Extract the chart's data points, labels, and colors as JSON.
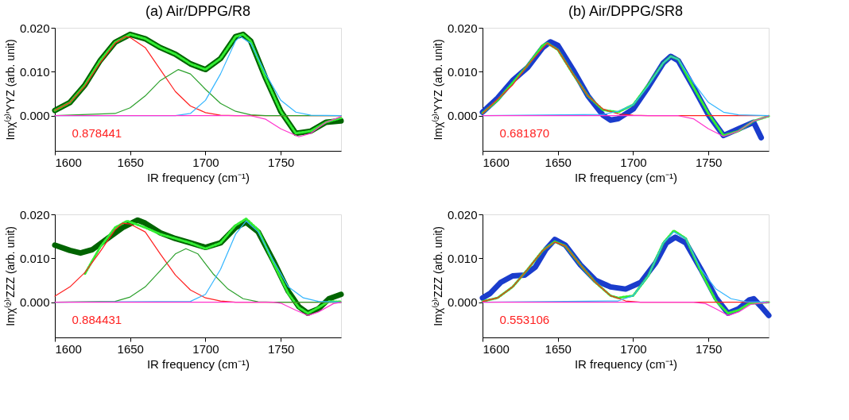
{
  "chart_data": [
    {
      "type": "line",
      "title": "(a) Air/DPPG/R8",
      "xlabel": "IR frequency (cm⁻¹)",
      "ylabel": "Imχ⁽²⁾′YYZ (arb. unit)",
      "xlim": [
        1600,
        1790
      ],
      "xticks": [
        1600,
        1650,
        1700,
        1750
      ],
      "ylim": [
        -0.008,
        0.02
      ],
      "yticks": [
        {
          "value": 0,
          "label": "0.000"
        },
        {
          "value": 0.01,
          "label": "0.010"
        },
        {
          "value": 0.02,
          "label": "0.020"
        }
      ],
      "grid": false,
      "marker": "none",
      "annotations": [
        "0.878441"
      ],
      "series": [
        {
          "color": "#006400",
          "line_style": "solid",
          "x": [
            1600,
            1610,
            1620,
            1630,
            1640,
            1650,
            1660,
            1670,
            1680,
            1690,
            1700,
            1710,
            1720,
            1725,
            1730,
            1740,
            1750,
            1760,
            1770,
            1780,
            1790
          ],
          "values": [
            0.0012,
            0.003,
            0.007,
            0.0125,
            0.0167,
            0.0185,
            0.0175,
            0.0155,
            0.014,
            0.0118,
            0.0105,
            0.013,
            0.018,
            0.0185,
            0.017,
            0.0085,
            0.001,
            -0.004,
            -0.0035,
            -0.0015,
            -0.0012
          ]
        },
        {
          "color": "#33ee33",
          "line_style": "dotted",
          "x": [
            1600,
            1610,
            1620,
            1630,
            1640,
            1650,
            1660,
            1670,
            1680,
            1690,
            1700,
            1710,
            1720,
            1725,
            1730,
            1740,
            1750,
            1760,
            1770,
            1780,
            1790
          ],
          "values": [
            0.0012,
            0.003,
            0.007,
            0.0125,
            0.0167,
            0.0185,
            0.0175,
            0.0155,
            0.014,
            0.0118,
            0.0105,
            0.013,
            0.018,
            0.0185,
            0.017,
            0.0085,
            0.001,
            -0.004,
            -0.0035,
            -0.0015,
            -0.0005
          ]
        },
        {
          "color": "#ff2020",
          "line_style": "solid",
          "x": [
            1600,
            1610,
            1620,
            1630,
            1640,
            1647,
            1650,
            1660,
            1670,
            1680,
            1690,
            1700,
            1710,
            1720,
            1790
          ],
          "values": [
            0.0012,
            0.003,
            0.0068,
            0.012,
            0.0165,
            0.018,
            0.0178,
            0.0155,
            0.0105,
            0.0055,
            0.0022,
            0.0007,
            0.0001,
            0,
            0
          ]
        },
        {
          "color": "#2ca02c",
          "line_style": "solid",
          "x": [
            1600,
            1640,
            1650,
            1660,
            1670,
            1682,
            1690,
            1700,
            1710,
            1720,
            1730,
            1740,
            1790
          ],
          "values": [
            0,
            0.0005,
            0.0018,
            0.0045,
            0.008,
            0.0105,
            0.0095,
            0.006,
            0.0028,
            0.001,
            0.0002,
            0,
            0
          ]
        },
        {
          "color": "#33b5ff",
          "line_style": "solid",
          "x": [
            1600,
            1680,
            1690,
            1700,
            1710,
            1720,
            1723,
            1730,
            1740,
            1750,
            1760,
            1770,
            1790
          ],
          "values": [
            0,
            0,
            0.0005,
            0.0035,
            0.0095,
            0.017,
            0.018,
            0.0165,
            0.0095,
            0.0035,
            0.0008,
            0.0001,
            0
          ]
        },
        {
          "color": "#ff33cc",
          "line_style": "solid",
          "x": [
            1600,
            1730,
            1740,
            1750,
            1762,
            1770,
            1780,
            1790
          ],
          "values": [
            0,
            0,
            -0.0008,
            -0.003,
            -0.0048,
            -0.004,
            -0.0015,
            -0.0002
          ]
        }
      ]
    },
    {
      "type": "line",
      "title": "(b) Air/DPPG/SR8",
      "xlabel": "IR frequency (cm⁻¹)",
      "ylabel": "Imχ⁽²⁾′YYZ (arb. unit)",
      "xlim": [
        1600,
        1790
      ],
      "xticks": [
        1600,
        1650,
        1700,
        1750
      ],
      "ylim": [
        -0.008,
        0.02
      ],
      "yticks": [
        {
          "value": 0,
          "label": "0.000"
        },
        {
          "value": 0.01,
          "label": "0.010"
        },
        {
          "value": 0.02,
          "label": "0.020"
        }
      ],
      "grid": false,
      "marker": "none",
      "annotations": [
        "0.681870"
      ],
      "series": [
        {
          "color": "#1a3ccc",
          "line_style": "solid",
          "x": [
            1600,
            1610,
            1620,
            1630,
            1640,
            1645,
            1650,
            1660,
            1670,
            1680,
            1685,
            1690,
            1700,
            1710,
            1720,
            1725,
            1730,
            1740,
            1750,
            1760,
            1770,
            1780,
            1785
          ],
          "values": [
            0.0008,
            0.004,
            0.008,
            0.011,
            0.0155,
            0.0168,
            0.016,
            0.0105,
            0.0045,
            0.0001,
            -0.001,
            -0.0007,
            0.0015,
            0.0065,
            0.012,
            0.0135,
            0.0125,
            0.0065,
            0.0002,
            -0.0045,
            -0.003,
            -0.0015,
            -0.005
          ]
        },
        {
          "color": "#33ee33",
          "line_style": "dotted",
          "x": [
            1600,
            1610,
            1620,
            1630,
            1640,
            1643,
            1650,
            1660,
            1670,
            1680,
            1690,
            1700,
            1710,
            1720,
            1725,
            1730,
            1740,
            1750,
            1760,
            1770,
            1780,
            1790
          ],
          "values": [
            0.0006,
            0.0035,
            0.0075,
            0.0115,
            0.016,
            0.0165,
            0.015,
            0.0095,
            0.0045,
            0.0013,
            0.0008,
            0.0025,
            0.007,
            0.012,
            0.0135,
            0.0128,
            0.0065,
            0.0005,
            -0.0045,
            -0.0035,
            -0.0012,
            -0.0001
          ]
        },
        {
          "color": "#ff2020",
          "line_style": "solid",
          "x": [
            1600,
            1620,
            1630,
            1643,
            1650,
            1660,
            1670,
            1680,
            1690,
            1700,
            1710,
            1790
          ],
          "values": [
            0.0005,
            0.007,
            0.0115,
            0.0165,
            0.015,
            0.0095,
            0.0045,
            0.0015,
            0.0004,
            0.0001,
            0,
            0
          ]
        },
        {
          "color": "#33b5ff",
          "line_style": "solid",
          "x": [
            1600,
            1680,
            1690,
            1700,
            1710,
            1720,
            1725,
            1730,
            1740,
            1750,
            1760,
            1770,
            1790
          ],
          "values": [
            0,
            0.0003,
            0.001,
            0.0025,
            0.0068,
            0.012,
            0.0135,
            0.0128,
            0.0075,
            0.003,
            0.0008,
            0.0002,
            0
          ]
        },
        {
          "color": "#ff33cc",
          "line_style": "solid",
          "x": [
            1600,
            1730,
            1740,
            1750,
            1760,
            1770,
            1780,
            1790
          ],
          "values": [
            0,
            0,
            -0.0007,
            -0.003,
            -0.0047,
            -0.0035,
            -0.0012,
            -0.0001
          ]
        }
      ]
    },
    {
      "type": "line",
      "xlabel": "IR frequency (cm⁻¹)",
      "ylabel": "Imχ⁽²⁾′ZZZ (arb. unit)",
      "xlim": [
        1600,
        1790
      ],
      "xticks": [
        1600,
        1650,
        1700,
        1750
      ],
      "ylim": [
        -0.008,
        0.02
      ],
      "yticks": [
        {
          "value": 0,
          "label": "0.000"
        },
        {
          "value": 0.01,
          "label": "0.010"
        },
        {
          "value": 0.02,
          "label": "0.020"
        }
      ],
      "grid": false,
      "marker": "none",
      "annotations": [
        "0.884431"
      ],
      "series": [
        {
          "color": "#006400",
          "line_style": "solid",
          "x": [
            1600,
            1610,
            1617,
            1625,
            1635,
            1645,
            1655,
            1660,
            1670,
            1680,
            1690,
            1700,
            1710,
            1720,
            1727,
            1735,
            1745,
            1755,
            1762,
            1768,
            1775,
            1782,
            1790
          ],
          "values": [
            0.013,
            0.0118,
            0.0112,
            0.012,
            0.0145,
            0.017,
            0.0187,
            0.018,
            0.0158,
            0.0145,
            0.0135,
            0.0125,
            0.0135,
            0.017,
            0.0182,
            0.016,
            0.0095,
            0.0025,
            -0.001,
            -0.0025,
            -0.0015,
            0.0008,
            0.0018
          ]
        },
        {
          "color": "#33ee33",
          "line_style": "dotted",
          "x": [
            1620,
            1630,
            1640,
            1648,
            1660,
            1670,
            1680,
            1690,
            1700,
            1710,
            1720,
            1727,
            1735,
            1745,
            1755,
            1762,
            1768,
            1775,
            1782,
            1790
          ],
          "values": [
            0.0065,
            0.0125,
            0.017,
            0.0185,
            0.017,
            0.0155,
            0.0145,
            0.0135,
            0.0122,
            0.0135,
            0.0175,
            0.019,
            0.0165,
            0.009,
            0.002,
            -0.0012,
            -0.0025,
            -0.0012,
            0.0002,
            0.0001
          ]
        },
        {
          "color": "#ff2020",
          "line_style": "solid",
          "x": [
            1600,
            1610,
            1620,
            1630,
            1640,
            1645,
            1650,
            1660,
            1670,
            1680,
            1690,
            1700,
            1710,
            1720,
            1790
          ],
          "values": [
            0.0014,
            0.0035,
            0.0068,
            0.0115,
            0.0165,
            0.018,
            0.0178,
            0.016,
            0.011,
            0.0062,
            0.0028,
            0.001,
            0.0003,
            0,
            0
          ]
        },
        {
          "color": "#2ca02c",
          "line_style": "solid",
          "x": [
            1600,
            1640,
            1650,
            1660,
            1670,
            1680,
            1687,
            1695,
            1705,
            1715,
            1725,
            1735,
            1745,
            1790
          ],
          "values": [
            0,
            0.0002,
            0.0012,
            0.0035,
            0.0072,
            0.011,
            0.0122,
            0.011,
            0.0065,
            0.003,
            0.0008,
            0.0001,
            0,
            0
          ]
        },
        {
          "color": "#33b5ff",
          "line_style": "solid",
          "x": [
            1600,
            1690,
            1700,
            1710,
            1720,
            1727,
            1735,
            1745,
            1755,
            1765,
            1775,
            1790
          ],
          "values": [
            0,
            0.0002,
            0.0018,
            0.0075,
            0.0155,
            0.0185,
            0.016,
            0.0095,
            0.0035,
            0.001,
            0.0002,
            0
          ]
        },
        {
          "color": "#ff33cc",
          "line_style": "solid",
          "x": [
            1600,
            1745,
            1750,
            1760,
            1768,
            1775,
            1785,
            1790
          ],
          "values": [
            0,
            0,
            -0.0002,
            -0.0018,
            -0.003,
            -0.0022,
            -0.0003,
            0
          ]
        }
      ]
    },
    {
      "type": "line",
      "xlabel": "IR frequency (cm⁻¹)",
      "ylabel": "Imχ⁽²⁾′ZZZ (arb. unit)",
      "xlim": [
        1600,
        1790
      ],
      "xticks": [
        1600,
        1650,
        1700,
        1750
      ],
      "ylim": [
        -0.008,
        0.02
      ],
      "yticks": [
        {
          "value": 0,
          "label": "0.000"
        },
        {
          "value": 0.01,
          "label": "0.010"
        },
        {
          "value": 0.02,
          "label": "0.020"
        }
      ],
      "grid": false,
      "marker": "none",
      "annotations": [
        "0.553106"
      ],
      "series": [
        {
          "color": "#1a3ccc",
          "line_style": "solid",
          "x": [
            1600,
            1605,
            1612,
            1620,
            1628,
            1635,
            1642,
            1648,
            1655,
            1665,
            1675,
            1685,
            1695,
            1705,
            1715,
            1722,
            1728,
            1735,
            1745,
            1755,
            1763,
            1770,
            1777,
            1780,
            1785,
            1790
          ],
          "values": [
            0.001,
            0.002,
            0.0045,
            0.006,
            0.0062,
            0.008,
            0.012,
            0.0143,
            0.013,
            0.0085,
            0.005,
            0.0035,
            0.003,
            0.0045,
            0.009,
            0.0135,
            0.0148,
            0.0135,
            0.0075,
            0.001,
            -0.0025,
            -0.0015,
            0.0005,
            0.0008,
            -0.001,
            -0.003
          ]
        },
        {
          "color": "#33ee33",
          "line_style": "dotted",
          "x": [
            1600,
            1610,
            1620,
            1630,
            1640,
            1648,
            1655,
            1665,
            1675,
            1685,
            1690,
            1700,
            1710,
            1720,
            1727,
            1735,
            1745,
            1755,
            1763,
            1770,
            1777,
            1790
          ],
          "values": [
            0.0002,
            0.001,
            0.0035,
            0.0075,
            0.0118,
            0.0138,
            0.0128,
            0.0085,
            0.0045,
            0.0015,
            0.001,
            0.0015,
            0.006,
            0.0135,
            0.0163,
            0.0145,
            0.007,
            0.0003,
            -0.0025,
            -0.0018,
            -0.0003,
            0
          ]
        },
        {
          "color": "#ff2020",
          "line_style": "solid",
          "x": [
            1600,
            1610,
            1620,
            1630,
            1640,
            1648,
            1655,
            1665,
            1675,
            1685,
            1695,
            1705,
            1790
          ],
          "values": [
            0.0002,
            0.001,
            0.0035,
            0.0075,
            0.0118,
            0.0137,
            0.0128,
            0.0085,
            0.0045,
            0.0015,
            0.0003,
            0,
            0
          ]
        },
        {
          "color": "#33b5ff",
          "line_style": "solid",
          "x": [
            1600,
            1690,
            1700,
            1710,
            1720,
            1727,
            1735,
            1745,
            1755,
            1765,
            1775,
            1790
          ],
          "values": [
            0,
            0.0003,
            0.0015,
            0.006,
            0.0135,
            0.016,
            0.0145,
            0.0075,
            0.003,
            0.0008,
            0.0001,
            0
          ]
        },
        {
          "color": "#ff33cc",
          "line_style": "solid",
          "x": [
            1600,
            1740,
            1748,
            1755,
            1763,
            1770,
            1778,
            1790
          ],
          "values": [
            0,
            0,
            -0.0003,
            -0.0015,
            -0.003,
            -0.0022,
            -0.0005,
            0
          ]
        }
      ]
    }
  ]
}
